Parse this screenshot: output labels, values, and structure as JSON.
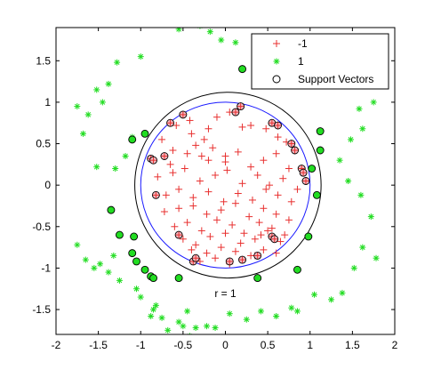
{
  "chart_data": {
    "type": "scatter",
    "title": "",
    "xlabel": "",
    "ylabel": "",
    "xlim": [
      -2,
      2
    ],
    "ylim": [
      -1.8,
      1.9
    ],
    "x_ticks": [
      -2,
      -1.5,
      -1,
      -0.5,
      0,
      0.5,
      1,
      1.5,
      2
    ],
    "x_tick_labels": [
      "-2",
      "-1.5",
      "-1",
      "-0.5",
      "0",
      "0.5",
      "1",
      "1.5",
      "2"
    ],
    "y_ticks": [
      1.5,
      1,
      0.5,
      0,
      -0.5,
      -1,
      -1.5
    ],
    "y_tick_labels": [
      "1.5",
      "1",
      "0.5",
      "0",
      "-0.5",
      "-1",
      "-1.5"
    ],
    "grid": false,
    "legend": {
      "placement": "top-right",
      "entries": [
        {
          "label": "-1",
          "marker": "plus",
          "color": "#e8302f"
        },
        {
          "label": "1",
          "marker": "asterisk",
          "color": "#22dd22"
        },
        {
          "label": "Support Vectors",
          "marker": "circle",
          "color": "#000000"
        }
      ]
    },
    "annotation": {
      "text": "r = 1",
      "x": 0,
      "y": -1.35
    },
    "true_boundary": {
      "shape": "circle",
      "center": [
        0,
        0
      ],
      "radius": 1,
      "color": "#1a1aff"
    },
    "svm_boundary": {
      "shape": "ellipse",
      "center": [
        0.03,
        0
      ],
      "rx": 1.1,
      "ry": 1.12,
      "color": "#000000"
    },
    "series": [
      {
        "name": "-1",
        "marker": "plus",
        "color": "#e8302f",
        "x": [
          -0.75,
          -0.58,
          -0.42,
          -0.4,
          -0.35,
          -0.25,
          -0.1,
          0.05,
          0.2,
          0.3,
          0.48,
          0.62,
          0.72,
          -0.62,
          -0.45,
          -0.28,
          -0.15,
          0.0,
          0.15,
          0.3,
          0.45,
          0.6,
          0.75,
          -0.8,
          -0.62,
          -0.48,
          -0.3,
          -0.12,
          0.02,
          0.2,
          0.38,
          0.52,
          0.68,
          0.85,
          -0.7,
          -0.55,
          -0.38,
          -0.2,
          -0.02,
          0.15,
          0.32,
          0.48,
          0.62,
          0.78,
          -0.72,
          -0.55,
          -0.38,
          -0.22,
          -0.05,
          0.12,
          0.28,
          0.45,
          0.6,
          0.75,
          -0.6,
          -0.45,
          -0.28,
          -0.1,
          0.08,
          0.22,
          0.4,
          0.55,
          0.7,
          -0.5,
          -0.35,
          -0.18,
          0.0,
          0.18,
          0.35,
          0.5,
          0.65,
          -0.4,
          -0.22,
          -0.05,
          0.12,
          0.3,
          0.45,
          -0.3,
          -0.12,
          0.05,
          0.2,
          0.35,
          -0.2,
          0.0,
          0.15,
          -0.65,
          -0.2,
          0.42,
          0.6
        ],
        "y": [
          0.55,
          0.72,
          0.78,
          0.62,
          0.48,
          0.55,
          0.82,
          0.88,
          0.7,
          0.72,
          0.68,
          0.58,
          0.52,
          0.42,
          0.38,
          0.35,
          0.45,
          0.28,
          0.4,
          0.22,
          0.3,
          0.38,
          0.2,
          0.1,
          0.15,
          0.2,
          0.05,
          0.12,
          0.18,
          0.02,
          0.12,
          0.0,
          0.08,
          -0.05,
          -0.12,
          -0.05,
          -0.15,
          -0.08,
          -0.2,
          -0.1,
          -0.18,
          -0.05,
          -0.12,
          -0.2,
          -0.32,
          -0.28,
          -0.25,
          -0.35,
          -0.3,
          -0.22,
          -0.38,
          -0.28,
          -0.35,
          -0.42,
          -0.5,
          -0.45,
          -0.55,
          -0.42,
          -0.48,
          -0.58,
          -0.45,
          -0.52,
          -0.6,
          -0.65,
          -0.72,
          -0.62,
          -0.58,
          -0.7,
          -0.65,
          -0.55,
          -0.68,
          -0.78,
          -0.82,
          -0.75,
          -0.8,
          -0.85,
          -0.78,
          -0.92,
          -0.88,
          -0.95,
          -0.9,
          -0.85,
          0.3,
          0.35,
          0.92,
          0.25,
          0.68,
          -0.6,
          -0.82
        ]
      },
      {
        "name": "1",
        "marker": "asterisk",
        "color": "#22dd22",
        "x": [
          -0.3,
          -0.18,
          -0.05,
          0.12,
          0.4,
          -0.55,
          -0.38,
          -1.0,
          -1.28,
          -1.52,
          -1.38,
          -1.45,
          -1.62,
          -1.75,
          -1.68,
          -1.1,
          -1.18,
          -1.3,
          -1.52,
          -1.75,
          -1.48,
          -1.65,
          -1.55,
          -1.32,
          -1.38,
          -1.25,
          -1.05,
          -1.0,
          -0.82,
          -0.88,
          -0.55,
          -0.45,
          -0.35,
          -0.22,
          -0.12,
          0.05,
          0.25,
          0.42,
          0.6,
          0.78,
          0.85,
          1.05,
          1.25,
          1.38,
          1.52,
          1.62,
          1.78,
          1.72,
          1.6,
          1.45,
          1.35,
          1.48,
          1.62,
          1.75,
          1.58,
          1.35,
          1.2,
          1.02,
          0.9,
          0.7,
          0.55,
          0.38,
          1.42,
          -0.5,
          -0.42,
          -0.68,
          -0.75,
          -0.85
        ],
        "y": [
          1.92,
          1.85,
          1.75,
          1.72,
          1.62,
          1.88,
          1.95,
          1.55,
          1.48,
          1.15,
          1.22,
          1.0,
          0.85,
          0.95,
          0.62,
          0.58,
          0.35,
          0.2,
          0.22,
          -0.72,
          -0.95,
          -0.9,
          -1.0,
          -0.85,
          -1.05,
          -1.15,
          -1.25,
          -1.35,
          -1.45,
          -1.58,
          -1.65,
          -1.52,
          -1.72,
          -1.7,
          -1.72,
          -1.55,
          -1.62,
          -1.52,
          -1.58,
          -1.48,
          -1.52,
          -1.32,
          -1.38,
          -1.3,
          -1.0,
          -0.75,
          -0.88,
          -0.38,
          -0.12,
          0.05,
          0.3,
          0.55,
          0.68,
          1.0,
          0.92,
          1.22,
          1.5,
          1.52,
          1.62,
          1.75,
          1.68,
          1.55,
          1.32,
          -1.7,
          -1.82,
          -1.75,
          -1.6,
          -1.5
        ],
        "highlighted": false
      },
      {
        "name": "Support Vectors",
        "marker": "circle",
        "color": "#000000",
        "points": [
          {
            "x": 0.2,
            "y": 1.4,
            "cls": "1"
          },
          {
            "x": 0.5,
            "y": 1.22,
            "cls": "1"
          },
          {
            "x": -0.95,
            "y": 0.62,
            "cls": "1"
          },
          {
            "x": -1.1,
            "y": 0.55,
            "cls": "1"
          },
          {
            "x": 1.12,
            "y": 0.65,
            "cls": "1"
          },
          {
            "x": 1.02,
            "y": 0.2,
            "cls": "1"
          },
          {
            "x": 1.08,
            "y": -0.12,
            "cls": "1"
          },
          {
            "x": 1.12,
            "y": 0.42,
            "cls": "1"
          },
          {
            "x": -1.35,
            "y": -0.3,
            "cls": "1"
          },
          {
            "x": -1.25,
            "y": -0.6,
            "cls": "1"
          },
          {
            "x": -1.08,
            "y": -0.62,
            "cls": "1"
          },
          {
            "x": -1.1,
            "y": -0.82,
            "cls": "1"
          },
          {
            "x": -1.05,
            "y": -0.92,
            "cls": "1"
          },
          {
            "x": -0.95,
            "y": -1.02,
            "cls": "1"
          },
          {
            "x": -0.88,
            "y": -1.1,
            "cls": "1"
          },
          {
            "x": -0.55,
            "y": -1.12,
            "cls": "1"
          },
          {
            "x": 0.38,
            "y": -1.12,
            "cls": "1"
          },
          {
            "x": 0.85,
            "y": -1.02,
            "cls": "1"
          },
          {
            "x": 0.98,
            "y": -0.62,
            "cls": "1"
          },
          {
            "x": -0.85,
            "y": -1.12,
            "cls": "1"
          },
          {
            "x": -0.5,
            "y": 0.85,
            "cls": "-1"
          },
          {
            "x": 0.18,
            "y": 0.95,
            "cls": "-1"
          },
          {
            "x": 0.12,
            "y": 0.88,
            "cls": "-1"
          },
          {
            "x": -0.72,
            "y": 0.35,
            "cls": "-1"
          },
          {
            "x": -0.88,
            "y": 0.32,
            "cls": "-1"
          },
          {
            "x": -0.82,
            "y": -0.12,
            "cls": "-1"
          },
          {
            "x": -0.55,
            "y": -0.6,
            "cls": "-1"
          },
          {
            "x": -0.38,
            "y": -0.92,
            "cls": "-1"
          },
          {
            "x": -0.35,
            "y": -0.88,
            "cls": "-1"
          },
          {
            "x": 0.05,
            "y": -0.92,
            "cls": "-1"
          },
          {
            "x": 0.2,
            "y": -0.9,
            "cls": "-1"
          },
          {
            "x": 0.38,
            "y": -0.85,
            "cls": "-1"
          },
          {
            "x": 0.55,
            "y": -0.62,
            "cls": "-1"
          },
          {
            "x": 0.78,
            "y": 0.5,
            "cls": "-1"
          },
          {
            "x": 0.82,
            "y": 0.42,
            "cls": "-1"
          },
          {
            "x": 0.9,
            "y": 0.2,
            "cls": "-1"
          },
          {
            "x": 0.92,
            "y": 0.15,
            "cls": "-1"
          },
          {
            "x": 0.55,
            "y": 0.75,
            "cls": "-1"
          },
          {
            "x": 0.62,
            "y": 0.72,
            "cls": "-1"
          },
          {
            "x": 0.95,
            "y": 0.05,
            "cls": "-1"
          },
          {
            "x": 0.58,
            "y": -0.65,
            "cls": "-1"
          },
          {
            "x": -0.65,
            "y": 0.75,
            "cls": "-1"
          },
          {
            "x": -0.85,
            "y": 0.3,
            "cls": "-1"
          }
        ]
      }
    ]
  }
}
